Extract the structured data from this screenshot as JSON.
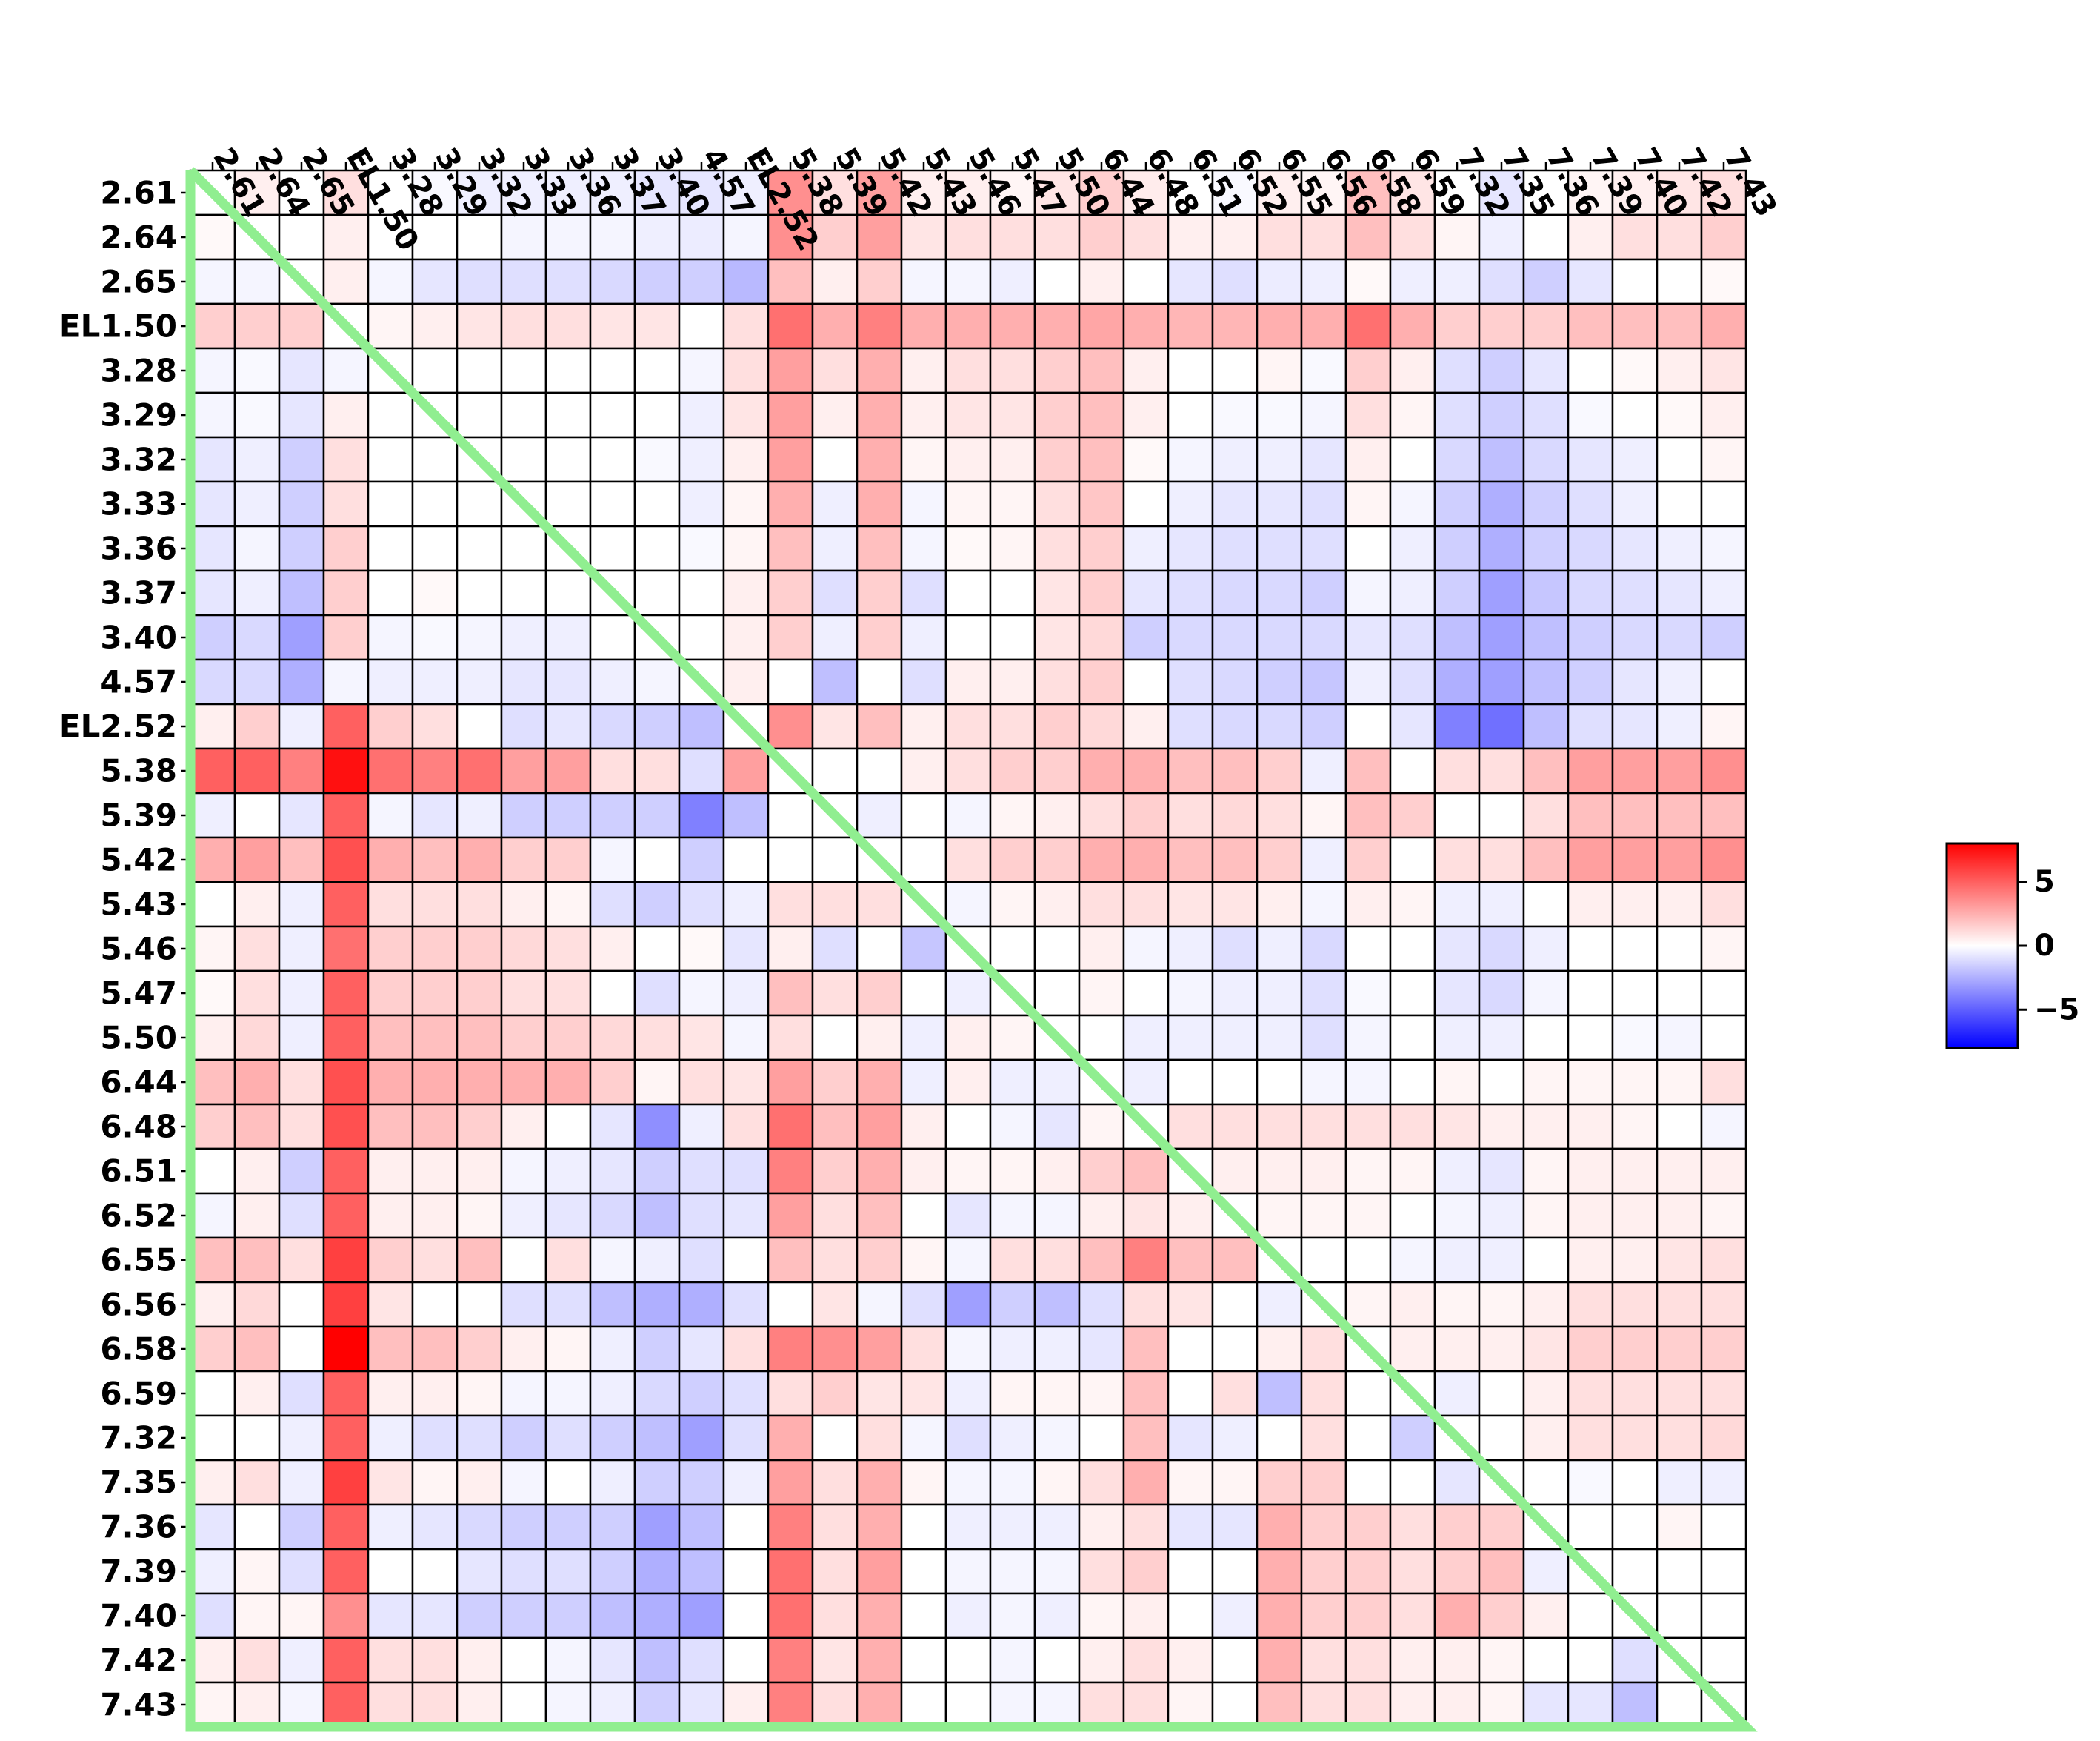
{
  "chart_data": {
    "type": "heatmap",
    "title": "",
    "xlabel": "",
    "ylabel": "",
    "labels": [
      "2.61",
      "2.64",
      "2.65",
      "EL1.50",
      "3.28",
      "3.29",
      "3.32",
      "3.33",
      "3.36",
      "3.37",
      "3.40",
      "4.57",
      "EL2.52",
      "5.38",
      "5.39",
      "5.42",
      "5.43",
      "5.46",
      "5.47",
      "5.50",
      "6.44",
      "6.48",
      "6.51",
      "6.52",
      "6.55",
      "6.56",
      "6.58",
      "6.59",
      "7.32",
      "7.35",
      "7.36",
      "7.39",
      "7.40",
      "7.42",
      "7.43"
    ],
    "values": [
      [
        0,
        0.5,
        0,
        1,
        0,
        -0.2,
        -0.5,
        -0.5,
        -0.5,
        -0.5,
        -0.8,
        -0.8,
        -0.5,
        3.5,
        1,
        3,
        0.5,
        0.5,
        0.3,
        0.8,
        1.5,
        0.6,
        0,
        -0.2,
        0.5,
        0.3,
        2,
        0.8,
        0,
        -0.8,
        0,
        0.3,
        0.5,
        0.8,
        1
      ],
      [
        0.2,
        0,
        0,
        0.5,
        0,
        0,
        0,
        -0.3,
        -0.3,
        -0.3,
        -0.5,
        -0.6,
        -0.3,
        3.5,
        1.5,
        3,
        0.8,
        1,
        1,
        1,
        1.5,
        1,
        0.5,
        0.5,
        1,
        1,
        2,
        1,
        0.3,
        -0.5,
        0,
        0.5,
        1,
        1,
        1.5
      ],
      [
        -0.3,
        -0.3,
        0,
        0.5,
        -0.3,
        -0.8,
        -1,
        -1,
        -1,
        -1.2,
        -1.5,
        -1.5,
        -2.2,
        2,
        0.5,
        1.5,
        -0.3,
        -0.3,
        -0.5,
        0,
        0.5,
        0,
        -0.8,
        -1,
        -0.6,
        -0.5,
        0.2,
        -0.5,
        -0.5,
        -1,
        -1.5,
        -0.8,
        0,
        0,
        0.2
      ],
      [
        1.5,
        1.5,
        1.5,
        0,
        0.3,
        0.5,
        0.8,
        1,
        1,
        0.8,
        0.8,
        0,
        1,
        4.5,
        2.5,
        4,
        2.5,
        2.5,
        2.5,
        2.5,
        2.8,
        2.5,
        2.3,
        2.3,
        2.5,
        2.5,
        4.5,
        2.5,
        1.5,
        1.5,
        1.5,
        2,
        2,
        2,
        2.5
      ],
      [
        -0.3,
        -0.2,
        -0.8,
        -0.3,
        0,
        0,
        0,
        0,
        0,
        0,
        0,
        -0.3,
        1,
        3,
        1,
        2.5,
        0.5,
        1,
        1,
        1.5,
        2,
        0.5,
        0,
        0,
        0.3,
        -0.2,
        1.5,
        0.5,
        -1,
        -1.5,
        -0.8,
        0,
        0.2,
        0.5,
        0.8
      ],
      [
        -0.3,
        -0.2,
        -0.8,
        0.5,
        0,
        0,
        0,
        0,
        0,
        0,
        0,
        -0.5,
        0.8,
        3,
        0.5,
        2.5,
        0.5,
        0.8,
        0.8,
        1.5,
        2,
        0.5,
        0,
        -0.2,
        -0.2,
        -0.3,
        1,
        0.3,
        -1,
        -1.5,
        -1,
        -0.2,
        0,
        0.2,
        0.5
      ],
      [
        -0.8,
        -0.5,
        -1.5,
        1,
        0,
        0,
        0,
        0,
        0,
        0,
        -0.2,
        -0.5,
        0.5,
        3,
        0,
        2.5,
        0.3,
        0.5,
        0.5,
        1.5,
        2,
        0.2,
        -0.3,
        -0.5,
        -0.5,
        -0.8,
        0.5,
        0,
        -1.2,
        -2,
        -1.2,
        -0.8,
        -0.5,
        0,
        0.3
      ],
      [
        -0.8,
        -0.5,
        -1.5,
        1,
        0,
        0,
        0,
        0,
        0,
        0,
        0,
        -0.5,
        0.3,
        2.5,
        -0.5,
        2.5,
        -0.3,
        0.3,
        0.3,
        1,
        1.8,
        0,
        -0.5,
        -0.8,
        -0.8,
        -1,
        0.3,
        -0.3,
        -1.5,
        -2.5,
        -1.5,
        -1,
        -0.5,
        0,
        0
      ],
      [
        -0.8,
        -0.3,
        -1.5,
        1.5,
        0,
        0,
        0,
        0,
        0,
        0,
        0,
        -0.2,
        0.3,
        2,
        -0.5,
        2,
        -0.3,
        0.2,
        0.3,
        1,
        1.5,
        -0.5,
        -0.8,
        -1,
        -1,
        -1,
        0,
        -0.5,
        -1.5,
        -2.5,
        -1.5,
        -1.2,
        -0.8,
        -0.5,
        -0.3
      ],
      [
        -0.8,
        -0.5,
        -2,
        1.5,
        0,
        0.2,
        0,
        0,
        0,
        0,
        0,
        0,
        0.5,
        1.5,
        -1,
        1.5,
        -1,
        0,
        0,
        0.8,
        1.5,
        -0.8,
        -1,
        -1.2,
        -1.2,
        -1.5,
        -0.3,
        -0.5,
        -1.5,
        -3,
        -1.8,
        -1.2,
        -1,
        -0.8,
        -0.5
      ],
      [
        -1.5,
        -1.2,
        -3,
        1.5,
        -0.3,
        -0.2,
        -0.3,
        -0.5,
        -0.5,
        0,
        0,
        0,
        0.5,
        1.5,
        -0.5,
        1.5,
        -0.5,
        0,
        0,
        0.8,
        1.2,
        -1.5,
        -1.2,
        -1.2,
        -1.2,
        -1.2,
        -0.8,
        -1,
        -2,
        -3,
        -2,
        -1.5,
        -1.2,
        -1.2,
        -1.5
      ],
      [
        -1.2,
        -1.2,
        -2.5,
        -0.3,
        -0.5,
        -0.5,
        -0.5,
        -0.8,
        -0.8,
        -0.5,
        -0.3,
        0,
        0.5,
        0,
        -2,
        0,
        -1,
        0.5,
        0.5,
        1,
        1.5,
        0,
        -1,
        -1.2,
        -1.5,
        -1.8,
        -0.5,
        -1,
        -2.5,
        -3,
        -2,
        -1.5,
        -0.8,
        -0.5,
        0
      ],
      [
        0.5,
        1.5,
        -0.5,
        5,
        1.5,
        1,
        0,
        -1,
        -0.8,
        -1.2,
        -1.5,
        -2,
        0,
        3.5,
        0.8,
        2,
        0.5,
        1,
        1,
        1.5,
        1.2,
        0.5,
        -1,
        -1.2,
        -1.2,
        -1.5,
        0,
        -0.8,
        -4,
        -4.5,
        -2,
        -1,
        -0.8,
        -0.5,
        0.3
      ],
      [
        5,
        5,
        4,
        7.5,
        4.5,
        4,
        4.5,
        3,
        3,
        1,
        1,
        -1,
        3,
        0,
        0,
        0,
        0.5,
        1,
        1.5,
        1.5,
        2.5,
        2.5,
        2,
        2,
        1.5,
        -0.5,
        2,
        0,
        1,
        1,
        2,
        3,
        3,
        3,
        3.5
      ],
      [
        -0.5,
        0,
        -0.8,
        5,
        -0.3,
        -0.8,
        -0.5,
        -1.5,
        -1.5,
        -1.5,
        -1.5,
        -4,
        -2,
        0,
        0,
        -0.5,
        0,
        -0.3,
        0.3,
        0.5,
        1,
        1.5,
        1,
        1.2,
        1,
        0.3,
        2,
        1.5,
        0,
        0,
        1,
        2,
        2,
        2,
        2
      ],
      [
        2.5,
        3,
        2,
        5.5,
        2.5,
        2,
        2.5,
        1.5,
        1.5,
        -0.3,
        0,
        -1.5,
        0,
        0,
        0,
        0,
        0,
        1,
        1.5,
        1.5,
        2.5,
        2.5,
        2,
        2,
        1.5,
        -0.5,
        1.5,
        0,
        1,
        1,
        2,
        3,
        3,
        3,
        3.5
      ],
      [
        0,
        0.5,
        -0.5,
        5,
        1,
        1,
        1,
        0.5,
        0.3,
        -1,
        -1.5,
        -1,
        -0.5,
        1,
        1,
        1,
        0,
        -0.3,
        0.3,
        0.5,
        1,
        1,
        0.8,
        0.8,
        0.5,
        -0.3,
        0.5,
        0.3,
        -0.5,
        -0.5,
        0,
        0.5,
        0.5,
        0.5,
        1
      ],
      [
        0.3,
        1,
        -0.5,
        4.5,
        1.5,
        1.5,
        1.5,
        1.2,
        1,
        0.5,
        0,
        0.2,
        -0.8,
        0.5,
        -1,
        0,
        -1.8,
        0,
        0,
        0,
        0.5,
        -0.3,
        -0.5,
        -1,
        -0.5,
        -1.2,
        0,
        0,
        -0.8,
        -1.2,
        -0.5,
        0,
        0,
        0,
        0.3
      ],
      [
        0.2,
        1,
        -0.5,
        5,
        1.5,
        1.5,
        1.5,
        1,
        1,
        0,
        -1,
        -0.3,
        -0.5,
        2,
        1,
        1.5,
        0,
        -0.5,
        0,
        0,
        0.3,
        0,
        -0.3,
        -0.5,
        -0.5,
        -1,
        -0.2,
        0,
        -0.8,
        -1.2,
        -0.3,
        0,
        0,
        0,
        0
      ],
      [
        0.5,
        1.2,
        -0.5,
        5,
        2,
        2,
        2,
        1.5,
        1.5,
        1.2,
        1,
        0.8,
        -0.3,
        1,
        0,
        0.5,
        -0.5,
        0.5,
        0.3,
        0,
        0,
        -0.5,
        -0.5,
        -0.5,
        -0.5,
        -1,
        -0.3,
        0,
        -0.5,
        -0.5,
        0,
        0,
        -0.2,
        -0.3,
        0
      ],
      [
        2,
        2.5,
        1,
        5.5,
        2.5,
        2.5,
        2.5,
        2.5,
        2.5,
        1.5,
        0.3,
        1,
        0.8,
        3,
        1.5,
        2.5,
        -0.5,
        0.5,
        -0.5,
        -0.5,
        0,
        -0.5,
        0,
        0,
        0,
        -0.3,
        -0.3,
        0,
        0.3,
        0,
        0.3,
        0.3,
        0.3,
        0.3,
        1
      ],
      [
        1.5,
        2,
        1,
        5.5,
        2,
        2,
        1.5,
        0.5,
        0,
        -0.8,
        -3.5,
        -0.5,
        1,
        4.5,
        2,
        3,
        0.5,
        0,
        -0.3,
        -0.8,
        0.3,
        0,
        1,
        1,
        1,
        1,
        1,
        1,
        0.8,
        0.5,
        0.5,
        0.5,
        0.3,
        0,
        -0.3
      ],
      [
        0,
        0.5,
        -1.5,
        5,
        0.5,
        0.5,
        0.5,
        -0.3,
        -0.5,
        -0.8,
        -1.5,
        -1,
        -1,
        4,
        1.5,
        2.5,
        0.5,
        0.3,
        0.3,
        0.5,
        1.5,
        2,
        0,
        0.5,
        0.5,
        0.5,
        0.3,
        0.3,
        -0.5,
        -0.8,
        0.3,
        0.5,
        0.5,
        0.5,
        0.5
      ],
      [
        -0.3,
        0.5,
        -1,
        5,
        0.5,
        0.5,
        0.3,
        -0.5,
        -0.8,
        -1.2,
        -2,
        -1,
        -0.8,
        3,
        1,
        2,
        0,
        -0.8,
        -0.3,
        -0.3,
        0.5,
        0.8,
        0.5,
        0,
        0.3,
        0.3,
        0.3,
        0,
        -0.3,
        -0.5,
        0.3,
        0.5,
        0.5,
        0.5,
        0.3
      ],
      [
        2,
        2,
        1,
        6,
        1.5,
        1,
        2,
        0,
        1,
        -0.3,
        -0.5,
        -1,
        0,
        2,
        1,
        1.5,
        0.3,
        -0.3,
        1,
        1,
        2,
        4,
        2,
        2,
        0,
        0,
        0,
        -0.3,
        -0.5,
        -0.5,
        0,
        0.5,
        0.5,
        0.8,
        1
      ],
      [
        0.5,
        1.2,
        0,
        6,
        0.8,
        0,
        0,
        -1,
        -1,
        -2,
        -2.5,
        -2.5,
        -1,
        0,
        0.8,
        -0.3,
        -1,
        -3,
        -1.5,
        -2,
        -1,
        1,
        0.8,
        0,
        -0.5,
        0,
        0.3,
        0.5,
        0.3,
        0.3,
        0.5,
        1,
        1,
        1,
        1
      ],
      [
        1.5,
        2,
        0,
        8,
        2,
        2,
        1.5,
        0.5,
        0.3,
        -0.5,
        -1.5,
        -0.8,
        1,
        4,
        3.5,
        3,
        1,
        -0.3,
        -0.5,
        -0.5,
        -0.8,
        2,
        0,
        0,
        0.5,
        1,
        0,
        0.5,
        0.5,
        0.5,
        0.8,
        1.5,
        1.5,
        1.5,
        1.5
      ],
      [
        0,
        0.5,
        -1,
        5,
        0.5,
        0.5,
        0.3,
        -0.3,
        -0.3,
        -0.5,
        -1.2,
        -1.5,
        -1,
        1,
        1.5,
        0.8,
        0.8,
        -0.5,
        0.3,
        0.3,
        0.3,
        2,
        0,
        1,
        -2,
        1,
        0,
        0,
        -0.5,
        0,
        0.5,
        1,
        1,
        1,
        1
      ],
      [
        0,
        0,
        -0.5,
        5,
        -0.5,
        -1,
        -1,
        -1.5,
        -1,
        -1.5,
        -2,
        -3,
        -1,
        2.5,
        0,
        1,
        -0.3,
        -1,
        -0.5,
        -0.3,
        0,
        2,
        -0.8,
        -0.5,
        0,
        1,
        0,
        -1.5,
        0,
        0,
        0.5,
        1,
        1,
        1,
        1.2
      ],
      [
        0.5,
        1,
        -0.5,
        6,
        0.8,
        0.3,
        0.5,
        -0.3,
        0,
        -0.5,
        -1.5,
        -1.5,
        -0.5,
        3,
        1,
        2.5,
        0.3,
        -0.3,
        -0.3,
        0.3,
        1,
        2.5,
        0.3,
        0.3,
        1.5,
        1.5,
        0,
        0,
        -0.8,
        0,
        0,
        -0.2,
        0,
        -0.5,
        -0.5
      ],
      [
        -0.8,
        0,
        -1.5,
        5,
        -0.5,
        -0.8,
        -1.2,
        -1.5,
        -1.5,
        -1.5,
        -3,
        -2,
        0,
        4,
        1,
        2.5,
        0,
        -0.5,
        -0.5,
        -0.5,
        0.5,
        1,
        -0.8,
        -0.8,
        2.5,
        1.5,
        1.5,
        1,
        1.5,
        1.5,
        0,
        0,
        0,
        0.3,
        0
      ],
      [
        -0.5,
        0.3,
        -1,
        5,
        0,
        0,
        -0.8,
        -1,
        -1,
        -1.5,
        -2.5,
        -2,
        0,
        4.5,
        1,
        3,
        0,
        -0.3,
        -0.3,
        -0.3,
        1,
        1.5,
        0,
        0,
        2.5,
        1.5,
        1.5,
        1,
        1.5,
        2,
        -0.5,
        0,
        0,
        0,
        0
      ],
      [
        -1,
        0.3,
        0.3,
        3.5,
        -0.8,
        -0.8,
        -1.5,
        -1.5,
        -1.5,
        -2,
        -2.5,
        -3,
        0,
        4.5,
        1,
        2.5,
        0,
        -0.5,
        -0.3,
        -0.5,
        0.3,
        0.5,
        0,
        -0.5,
        2.5,
        1.5,
        1.5,
        1,
        2.5,
        1.5,
        0.5,
        0,
        0,
        0,
        0
      ],
      [
        0.5,
        1,
        -0.5,
        5,
        1,
        1,
        0.5,
        0,
        -0.3,
        -0.8,
        -2,
        -1,
        0,
        4,
        0.8,
        2.5,
        0,
        0,
        -0.3,
        0,
        0.5,
        1,
        0.5,
        0,
        2.5,
        1,
        1,
        0.5,
        0.5,
        0.3,
        0,
        0,
        -1,
        0,
        0
      ],
      [
        0.3,
        0.5,
        -0.3,
        5,
        1,
        1,
        0.5,
        0,
        -0.3,
        -0.5,
        -1.5,
        -0.8,
        0.5,
        4,
        1,
        2.5,
        0,
        0,
        -0.3,
        -0.3,
        1,
        1,
        0.3,
        0,
        2,
        1,
        1,
        0.5,
        0.5,
        0.3,
        -0.8,
        -0.8,
        -2,
        0,
        0
      ]
    ],
    "colorbar": {
      "ticks": [
        5,
        0,
        -5
      ],
      "tick_labels": [
        "5",
        "0",
        "−5"
      ],
      "range": [
        -8,
        8
      ]
    },
    "colormap": {
      "low": "#0000ff",
      "mid": "#ffffff",
      "high": "#ff0000"
    },
    "diagonal_line_color": "#90ee90",
    "grid": true,
    "legend": "right"
  }
}
